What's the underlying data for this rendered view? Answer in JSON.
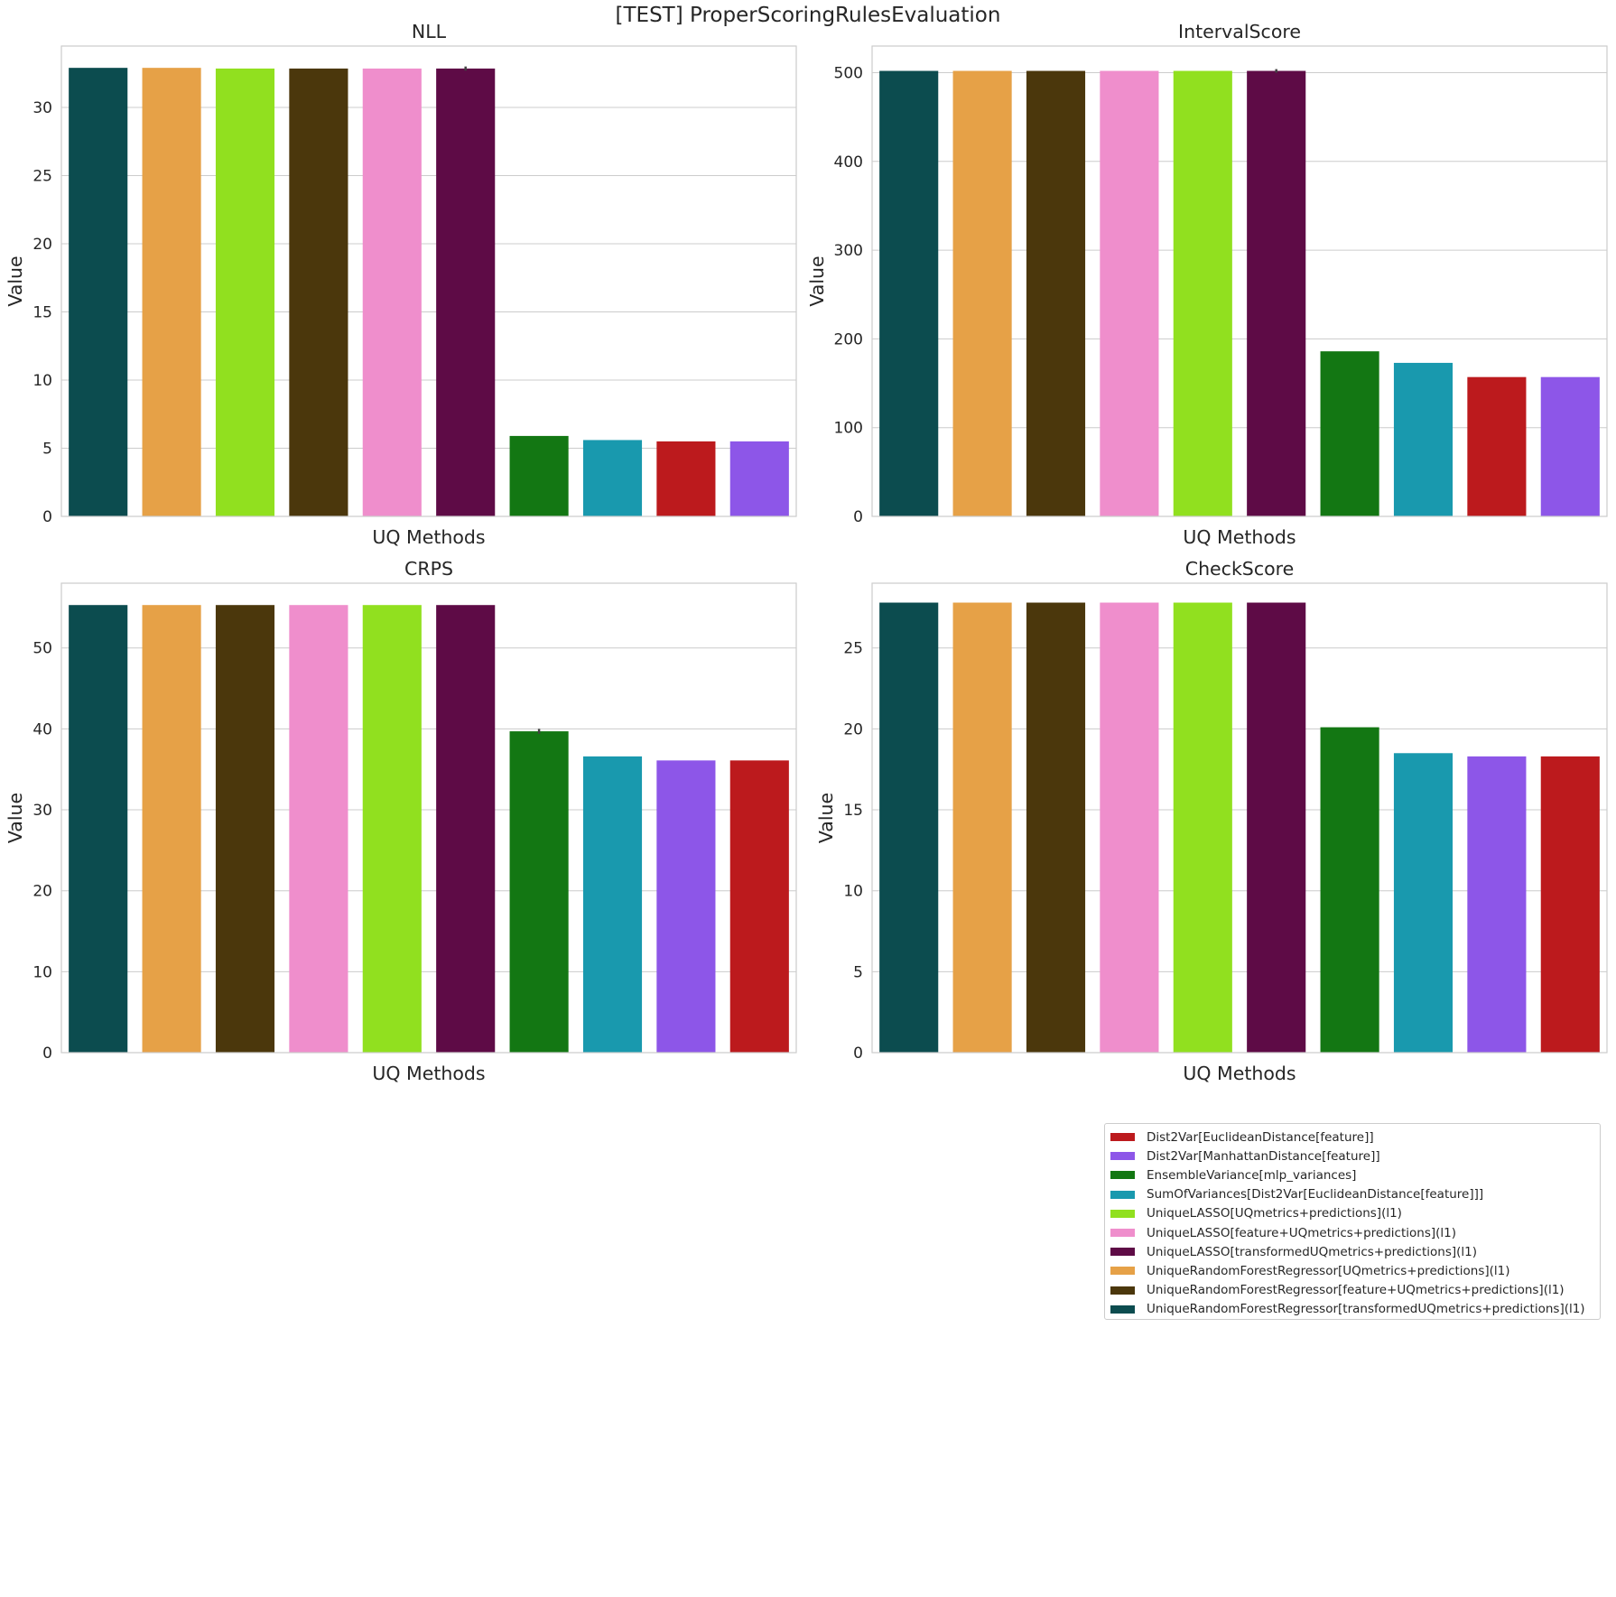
{
  "figure": {
    "title": "[TEST] ProperScoringRulesEvaluation"
  },
  "methods": {
    "Dist2Var[EuclideanDistance[feature]]": "#bc1a1d",
    "Dist2Var[ManhattanDistance[feature]]": "#8d56e8",
    "EnsembleVariance[mlp_variances]": "#137713",
    "SumOfVariances[Dist2Var[EuclideanDistance[feature]]]": "#1999ae",
    "UniqueLASSO[UQmetrics+predictions](l1)": "#91e01f",
    "UniqueLASSO[feature+UQmetrics+predictions](l1)": "#ef8ecc",
    "UniqueLASSO[transformedUQmetrics+predictions](l1)": "#5e0b46",
    "UniqueRandomForestRegressor[UQmetrics+predictions](l1)": "#e6a147",
    "UniqueRandomForestRegressor[feature+UQmetrics+predictions](l1)": "#4b370c",
    "UniqueRandomForestRegressor[transformedUQmetrics+predictions](l1)": "#0c4c4f"
  },
  "chart_data": [
    {
      "type": "bar",
      "title": "NLL",
      "xlabel": "UQ Methods",
      "ylabel": "Value",
      "ylim": [
        0,
        34.5
      ],
      "yticks": [
        0,
        5,
        10,
        15,
        20,
        25,
        30
      ],
      "grid": true,
      "categories": [
        "UniqueRandomForestRegressor[transformedUQmetrics+predictions](l1)",
        "UniqueRandomForestRegressor[UQmetrics+predictions](l1)",
        "UniqueLASSO[UQmetrics+predictions](l1)",
        "UniqueRandomForestRegressor[feature+UQmetrics+predictions](l1)",
        "UniqueLASSO[feature+UQmetrics+predictions](l1)",
        "UniqueLASSO[transformedUQmetrics+predictions](l1)",
        "EnsembleVariance[mlp_variances]",
        "SumOfVariances[Dist2Var[EuclideanDistance[feature]]]",
        "Dist2Var[EuclideanDistance[feature]]",
        "Dist2Var[ManhattanDistance[feature]]"
      ],
      "values": [
        32.9,
        32.9,
        32.85,
        32.85,
        32.85,
        32.85,
        5.9,
        5.6,
        5.5,
        5.5
      ],
      "errors": [
        0,
        0,
        0,
        0,
        0,
        0.15,
        0,
        0,
        0,
        0
      ]
    },
    {
      "type": "bar",
      "title": "IntervalScore",
      "xlabel": "UQ Methods",
      "ylabel": "Value",
      "ylim": [
        0,
        530
      ],
      "yticks": [
        0,
        100,
        200,
        300,
        400,
        500
      ],
      "grid": true,
      "categories": [
        "UniqueRandomForestRegressor[transformedUQmetrics+predictions](l1)",
        "UniqueRandomForestRegressor[UQmetrics+predictions](l1)",
        "UniqueRandomForestRegressor[feature+UQmetrics+predictions](l1)",
        "UniqueLASSO[feature+UQmetrics+predictions](l1)",
        "UniqueLASSO[UQmetrics+predictions](l1)",
        "UniqueLASSO[transformedUQmetrics+predictions](l1)",
        "EnsembleVariance[mlp_variances]",
        "SumOfVariances[Dist2Var[EuclideanDistance[feature]]]",
        "Dist2Var[EuclideanDistance[feature]]",
        "Dist2Var[ManhattanDistance[feature]]"
      ],
      "values": [
        502,
        502,
        502,
        502,
        502,
        502,
        186,
        173,
        157,
        157
      ],
      "errors": [
        0,
        0,
        0,
        0,
        0,
        2,
        0,
        0,
        0,
        0
      ]
    },
    {
      "type": "bar",
      "title": "CRPS",
      "xlabel": "UQ Methods",
      "ylabel": "Value",
      "ylim": [
        0,
        58
      ],
      "yticks": [
        0,
        10,
        20,
        30,
        40,
        50
      ],
      "grid": true,
      "categories": [
        "UniqueRandomForestRegressor[transformedUQmetrics+predictions](l1)",
        "UniqueRandomForestRegressor[UQmetrics+predictions](l1)",
        "UniqueRandomForestRegressor[feature+UQmetrics+predictions](l1)",
        "UniqueLASSO[feature+UQmetrics+predictions](l1)",
        "UniqueLASSO[UQmetrics+predictions](l1)",
        "UniqueLASSO[transformedUQmetrics+predictions](l1)",
        "EnsembleVariance[mlp_variances]",
        "SumOfVariances[Dist2Var[EuclideanDistance[feature]]]",
        "Dist2Var[ManhattanDistance[feature]]",
        "Dist2Var[EuclideanDistance[feature]]"
      ],
      "values": [
        55.3,
        55.3,
        55.3,
        55.3,
        55.3,
        55.3,
        39.7,
        36.6,
        36.1,
        36.1
      ],
      "errors": [
        0,
        0,
        0,
        0,
        0,
        0,
        0.3,
        0,
        0,
        0
      ]
    },
    {
      "type": "bar",
      "title": "CheckScore",
      "xlabel": "UQ Methods",
      "ylabel": "Value",
      "ylim": [
        0,
        29
      ],
      "yticks": [
        0,
        5,
        10,
        15,
        20,
        25
      ],
      "grid": true,
      "categories": [
        "UniqueRandomForestRegressor[transformedUQmetrics+predictions](l1)",
        "UniqueRandomForestRegressor[UQmetrics+predictions](l1)",
        "UniqueRandomForestRegressor[feature+UQmetrics+predictions](l1)",
        "UniqueLASSO[feature+UQmetrics+predictions](l1)",
        "UniqueLASSO[UQmetrics+predictions](l1)",
        "UniqueLASSO[transformedUQmetrics+predictions](l1)",
        "EnsembleVariance[mlp_variances]",
        "SumOfVariances[Dist2Var[EuclideanDistance[feature]]]",
        "Dist2Var[ManhattanDistance[feature]]",
        "Dist2Var[EuclideanDistance[feature]]"
      ],
      "values": [
        27.8,
        27.8,
        27.8,
        27.8,
        27.8,
        27.8,
        20.1,
        18.5,
        18.3,
        18.3
      ],
      "errors": [
        0,
        0,
        0,
        0,
        0,
        0,
        0,
        0,
        0,
        0
      ]
    }
  ],
  "legend": {
    "placement": "lower-right",
    "items": [
      "Dist2Var[EuclideanDistance[feature]]",
      "Dist2Var[ManhattanDistance[feature]]",
      "EnsembleVariance[mlp_variances]",
      "SumOfVariances[Dist2Var[EuclideanDistance[feature]]]",
      "UniqueLASSO[UQmetrics+predictions](l1)",
      "UniqueLASSO[feature+UQmetrics+predictions](l1)",
      "UniqueLASSO[transformedUQmetrics+predictions](l1)",
      "UniqueRandomForestRegressor[UQmetrics+predictions](l1)",
      "UniqueRandomForestRegressor[feature+UQmetrics+predictions](l1)",
      "UniqueRandomForestRegressor[transformedUQmetrics+predictions](l1)"
    ]
  }
}
